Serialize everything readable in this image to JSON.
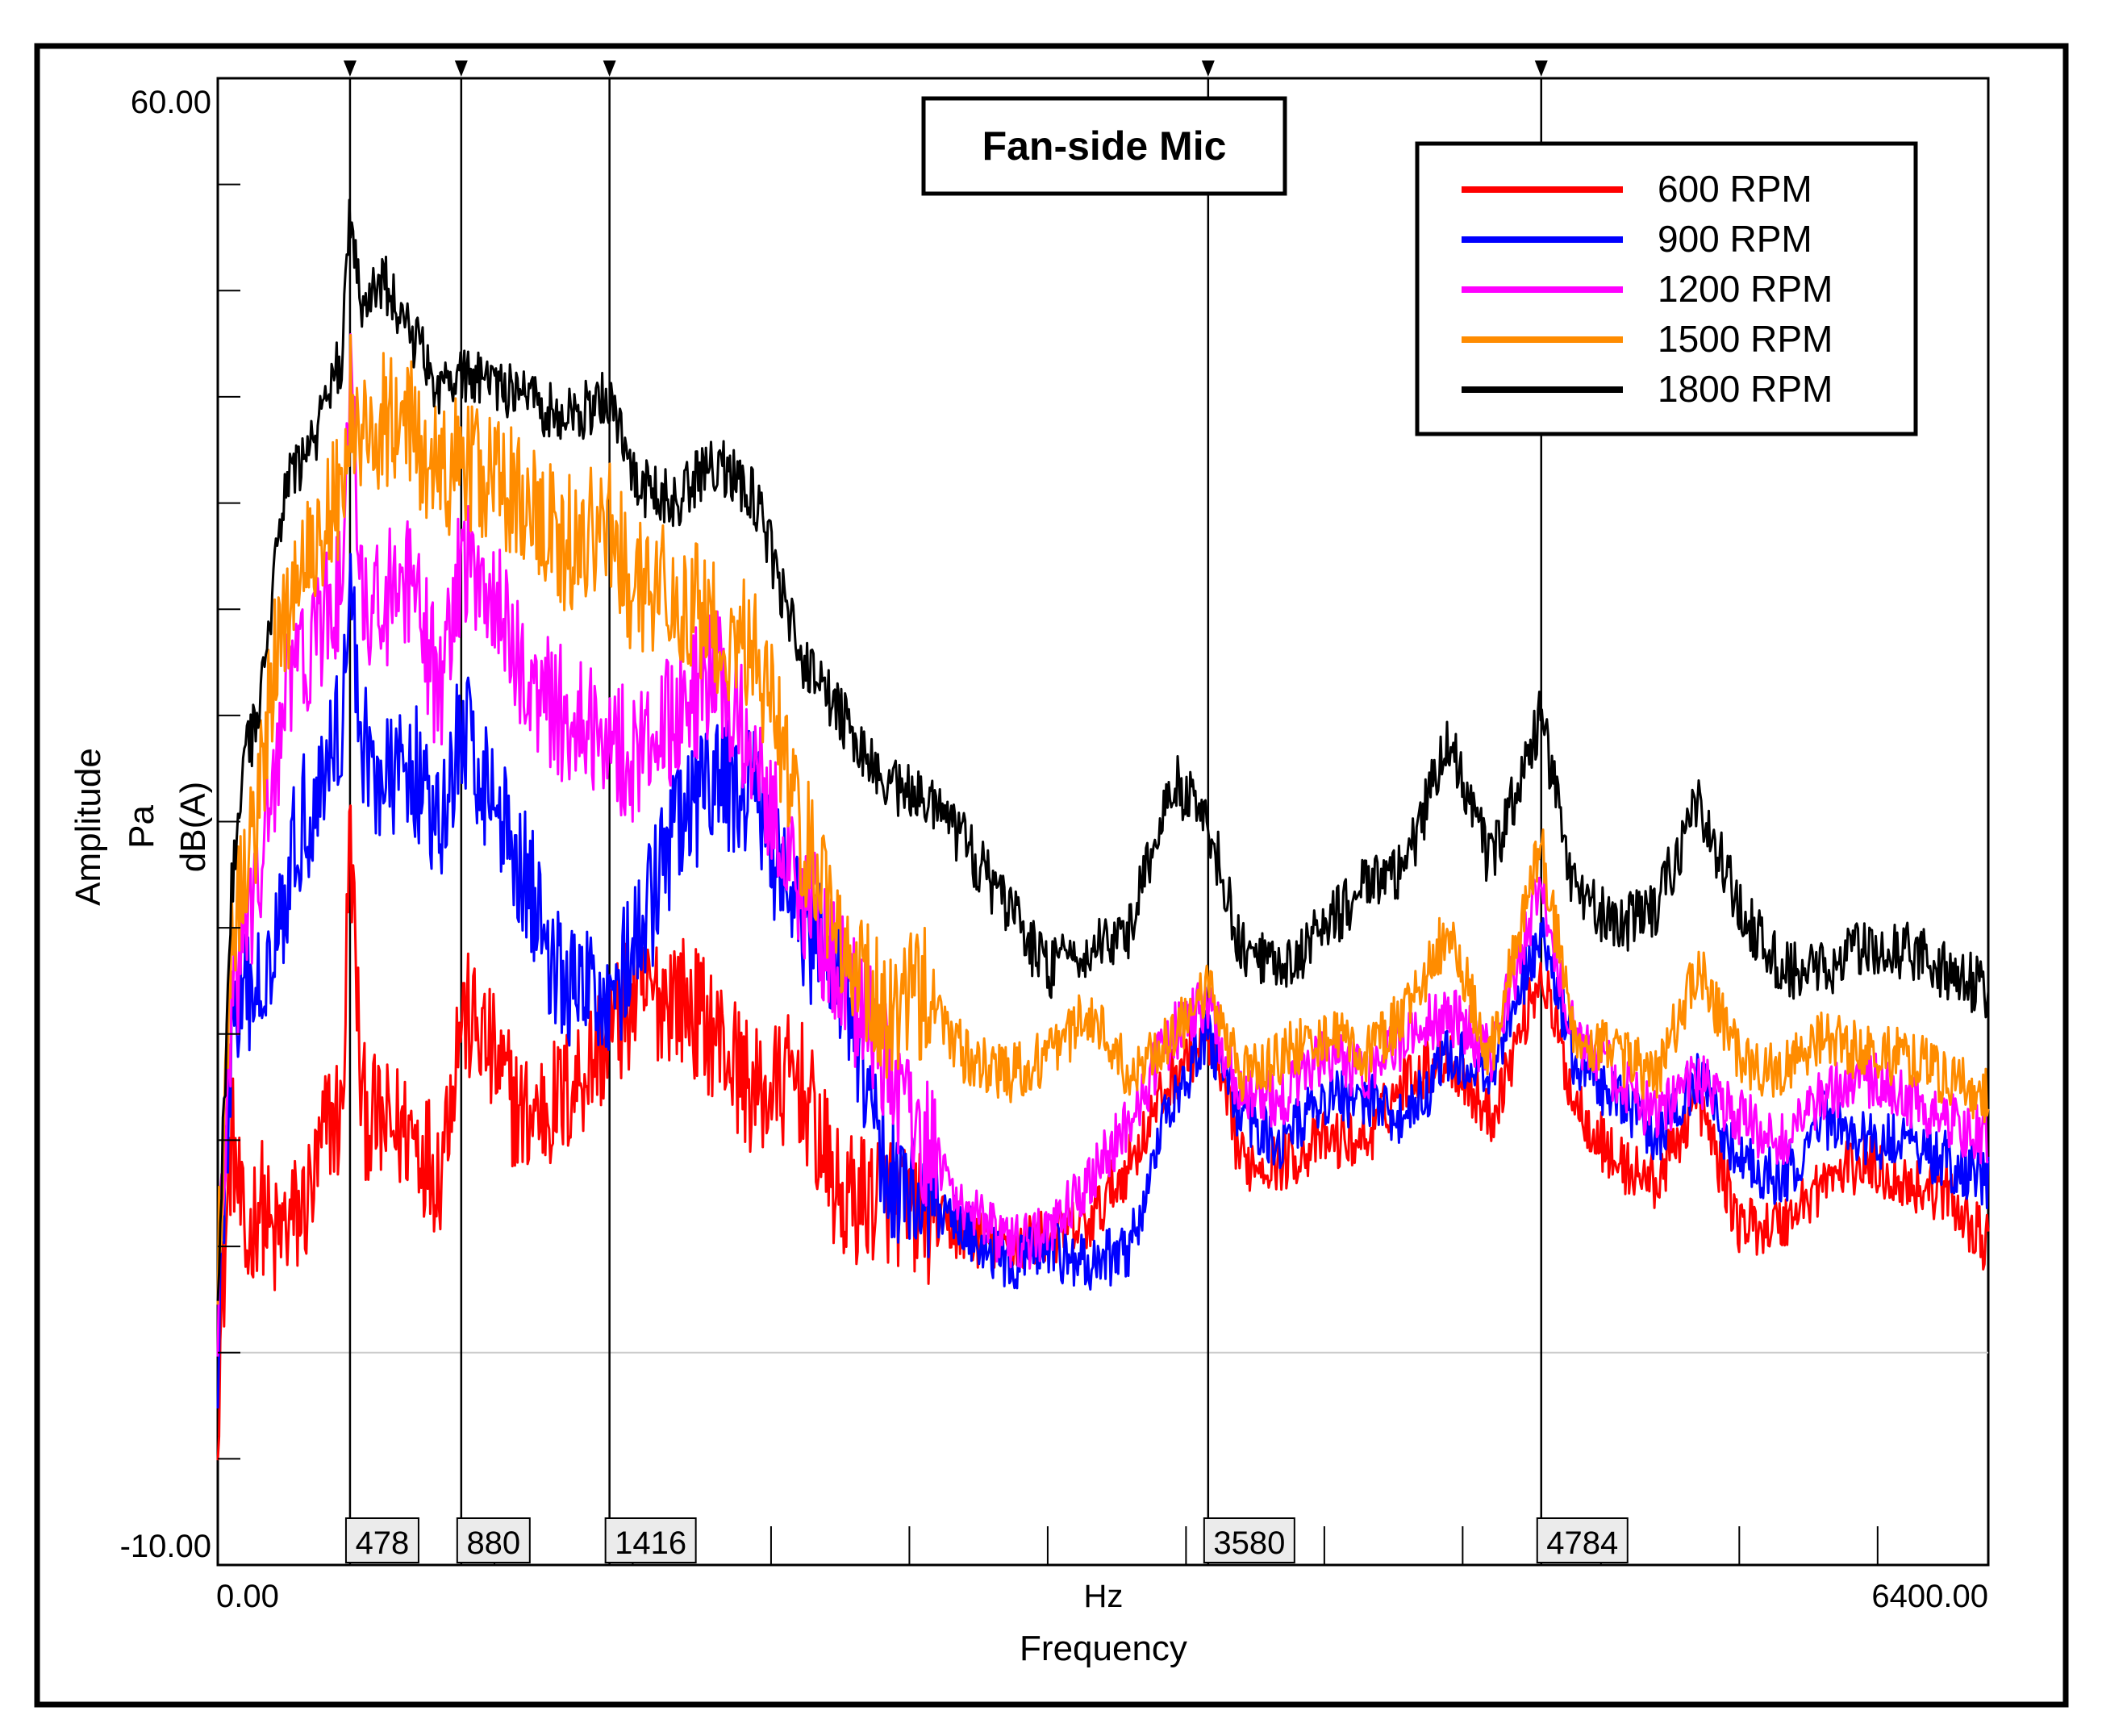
{
  "chart_data": {
    "type": "line",
    "title": "Fan-side Mic",
    "xlabel": "Frequency",
    "xunit": "Hz",
    "ylabel": [
      "Amplitude",
      "Pa",
      "dB(A)"
    ],
    "xlim": [
      0,
      6400
    ],
    "ylim": [
      -10,
      60
    ],
    "x_tick_labels": [
      "0.00",
      "6400.00"
    ],
    "y_tick_labels": [
      "-10.00",
      "60.00"
    ],
    "y_minor_ticks": [
      -5,
      0,
      5,
      10,
      15,
      20,
      25,
      30,
      35,
      40,
      45,
      50,
      55
    ],
    "x_minor_ticks": [
      1000,
      1500,
      2000,
      2500,
      3000,
      3500,
      4000,
      4500,
      5000,
      5500,
      6000
    ],
    "reference_line_y": 0.0,
    "legend_position": "top-right",
    "cursor_markers": [
      {
        "x": 478,
        "label": "478"
      },
      {
        "x": 880,
        "label": "880"
      },
      {
        "x": 1416,
        "label": "1416"
      },
      {
        "x": 3580,
        "label": "3580"
      },
      {
        "x": 4784,
        "label": "4784"
      }
    ],
    "x": [
      0,
      50,
      100,
      150,
      200,
      250,
      300,
      350,
      400,
      450,
      478,
      520,
      600,
      700,
      800,
      880,
      950,
      1100,
      1250,
      1416,
      1500,
      1650,
      1800,
      1950,
      2100,
      2250,
      2400,
      2550,
      2700,
      2850,
      3000,
      3150,
      3300,
      3450,
      3580,
      3700,
      3850,
      4000,
      4150,
      4300,
      4450,
      4600,
      4784,
      4900,
      5050,
      5200,
      5350,
      5500,
      5650,
      5800,
      5950,
      6100,
      6250,
      6400
    ],
    "series": [
      {
        "name": "600 RPM",
        "color": "#ff0000",
        "values": [
          -2,
          10.5,
          4.5,
          7.5,
          5,
          6,
          6.5,
          8,
          11,
          11,
          25,
          11.5,
          10.5,
          10.5,
          8.5,
          16,
          15,
          11,
          12,
          15,
          16.5,
          17,
          15,
          12,
          13,
          7,
          7.5,
          6.5,
          5.5,
          5,
          5.5,
          6,
          9,
          13,
          15,
          9,
          9,
          10,
          10,
          13,
          14,
          11,
          18,
          12,
          9,
          8,
          12,
          6,
          6,
          8,
          9,
          8,
          7.5,
          5
        ]
      },
      {
        "name": "900 RPM",
        "color": "#0000ff",
        "values": [
          0,
          15,
          16.5,
          17,
          20,
          22,
          25,
          26,
          28,
          30,
          36,
          29,
          26.5,
          28,
          24,
          29.5,
          27.5,
          23,
          17,
          17,
          18.5,
          24.5,
          27,
          26,
          20,
          18,
          9,
          7,
          6,
          4,
          5,
          4,
          5,
          12,
          15,
          11,
          10,
          12,
          12,
          11,
          14,
          13,
          20,
          14,
          12,
          10,
          13,
          9,
          8,
          11,
          10,
          10,
          9,
          8
        ]
      },
      {
        "name": "1200 RPM",
        "color": "#ff00ff",
        "values": [
          2,
          16,
          20,
          22,
          27,
          31,
          33,
          33,
          35,
          36,
          46,
          35,
          35.5,
          36,
          31,
          37,
          37,
          32,
          30,
          29,
          28,
          30,
          32,
          28,
          22,
          18,
          14,
          10,
          7,
          5,
          5.5,
          8,
          11,
          15,
          16.5,
          12,
          12,
          14,
          13,
          15,
          16,
          14,
          22,
          15,
          13,
          11,
          13,
          11,
          10,
          12,
          13,
          12,
          11,
          10
        ]
      },
      {
        "name": "1500 RPM",
        "color": "#ff8c00",
        "values": [
          4,
          20,
          23,
          26,
          32,
          35,
          37,
          38,
          40,
          40,
          45,
          43,
          44,
          43.5,
          41,
          42,
          41.5,
          40,
          38,
          39,
          36,
          36,
          34,
          33,
          25,
          20,
          16,
          17,
          14,
          13,
          14,
          16,
          13,
          15,
          17,
          13,
          14,
          15,
          14,
          16,
          20,
          14,
          24,
          15,
          14,
          13,
          18,
          14,
          13,
          15,
          14,
          14,
          13,
          12
        ]
      },
      {
        "name": "1800 RPM",
        "color": "#000000",
        "values": [
          3,
          22,
          28,
          30,
          36,
          41,
          42,
          43,
          45,
          47,
          54,
          49,
          50.5,
          48,
          45.5,
          46,
          46,
          45,
          44,
          45,
          41,
          40,
          42,
          40,
          33,
          30,
          27,
          26,
          24,
          21,
          18,
          19,
          20,
          27,
          25,
          19,
          18,
          20,
          22,
          23,
          29,
          23,
          30,
          22,
          20,
          21,
          26,
          21,
          18,
          18,
          19,
          19,
          18,
          17
        ]
      }
    ]
  }
}
